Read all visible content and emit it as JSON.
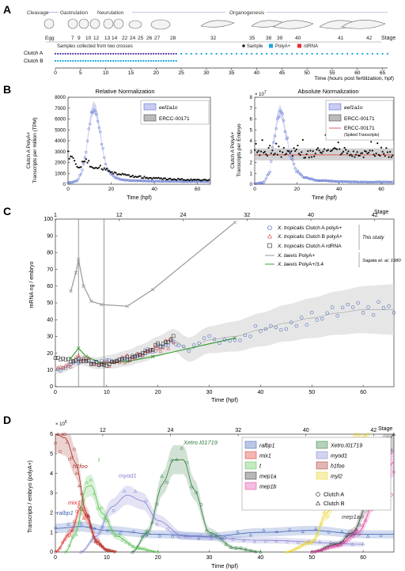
{
  "panel_labels": {
    "a": "A",
    "b": "B",
    "c": "C",
    "d": "D"
  },
  "panelA": {
    "phases": [
      "Cleavage",
      "Gastrulation",
      "Neurulation",
      "Organogenesis"
    ],
    "stage_label": "Stage",
    "egg_label": "Egg",
    "stages": [
      "7",
      "9",
      "10",
      "12",
      "13",
      "14",
      "22",
      "24",
      "25",
      "26",
      "27",
      "28",
      "32",
      "35",
      "38",
      "39",
      "40",
      "41",
      "42"
    ],
    "legend_note": "Samples collected from two crosses",
    "legend": [
      {
        "label": "Sample",
        "color": "#222222"
      },
      {
        "label": "PolyA+",
        "color": "#1aa7df"
      },
      {
        "label": "rdRNA",
        "color": "#e0312e"
      }
    ],
    "clutches": [
      "Clutch A",
      "Clutch B"
    ],
    "xticks": [
      "0",
      "5",
      "10",
      "15",
      "20",
      "25",
      "30",
      "35",
      "40",
      "45",
      "50",
      "55",
      "60",
      "65"
    ],
    "xlabel": "Time (hours post fertilization, hpf)"
  },
  "panelB": {
    "left": {
      "title": "Relative Normalization",
      "ylabel_1": "Clutch A PolyA+",
      "ylabel_2": "Transcripts per million (TPM)",
      "xlabel": "Time (hpf)",
      "yticks": [
        "0",
        "1000",
        "2000",
        "3000",
        "4000",
        "5000",
        "6000",
        "7000",
        "8000"
      ],
      "xticks": [
        "0",
        "20",
        "40",
        "60"
      ],
      "legend": [
        "eef1a1o",
        "ERCC-00171"
      ]
    },
    "right": {
      "title": "Absolute Normalization",
      "exponent": "× 10",
      "exponent_power": "7",
      "ylabel_1": "Clutch A PolyA+",
      "ylabel_2": "Transcripts per Embryo",
      "xlabel": "Time (hpf)",
      "yticks": [
        "0",
        "1",
        "2",
        "3",
        "4",
        "5",
        "6",
        "7",
        "8"
      ],
      "xticks": [
        "0",
        "20",
        "40",
        "60"
      ],
      "legend": [
        "eef1a1o",
        "ERCC-00171",
        "ERCC-00171",
        "(Spiked Transcripts)"
      ]
    }
  },
  "panelC": {
    "ylabel": "mRNA ng / embryo",
    "xlabel": "Time (hpf)",
    "stage_label": "Stage",
    "top_ticks": [
      "1",
      "12",
      "24",
      "32",
      "40",
      "42"
    ],
    "yticks": [
      "0",
      "10",
      "20",
      "30",
      "40",
      "50",
      "60",
      "70",
      "80",
      "90",
      "100"
    ],
    "xticks": [
      "0",
      "10",
      "20",
      "30",
      "40",
      "50",
      "60"
    ],
    "legend": [
      {
        "species": "X. tropicalis",
        "rest": "Clutch A polyA+"
      },
      {
        "species": "X. tropicalis",
        "rest": "Clutch B polyA+"
      },
      {
        "species": "X. tropicalis",
        "rest": "Clutch A rdRNA"
      },
      {
        "species": "X. laevis",
        "rest": "PolyA+"
      },
      {
        "species": "X. laevis",
        "rest": "PolyA+/3.4"
      }
    ],
    "this_study": "This study",
    "sagata": "Sagata et. al, 1980"
  },
  "panelD": {
    "ylabel": "Transcripts / embryo (polyA+)",
    "xlabel": "Time (hpf)",
    "exponent": "× 10",
    "exponent_power": "6",
    "stage_label": "Stage",
    "top_ticks": [
      "12",
      "24",
      "32",
      "40",
      "42"
    ],
    "yticks": [
      "0",
      "1",
      "2",
      "3",
      "4",
      "5",
      "6"
    ],
    "xticks": [
      "0",
      "10",
      "20",
      "30",
      "40",
      "50",
      "60"
    ],
    "curve_labels": [
      "h1foo",
      "mix1",
      "t",
      "myod1",
      "Xetro.I01719",
      "ralbp1",
      "myl2",
      "mep1a",
      "mep1b"
    ],
    "legend": [
      "ralbp1",
      "Xetro.I01719",
      "mix1",
      "myod1",
      "t",
      "h1foo",
      "mep1a",
      "myl2",
      "mep1b"
    ],
    "legend_markers": [
      "Clutch A",
      "Clutch B"
    ]
  },
  "colors": {
    "eef1a1o": "#4a63c8",
    "polyA": "#1aa7df",
    "rdRNA": "#e0312e",
    "laevis": "#999999",
    "laevis34": "#3aa035",
    "ralbp1": "#3860b4",
    "xetro": "#2e7a3c",
    "mix1": "#d9302a",
    "myod1": "#8080d0",
    "t": "#58c050",
    "h1foo": "#a83028",
    "mep1a": "#333333",
    "myl2": "#e8d020",
    "mep1b": "#e040a0"
  },
  "chart_data": [
    {
      "type": "scatter",
      "title": "Relative Normalization",
      "xlabel": "Time (hpf)",
      "ylabel": "Clutch A PolyA+ Transcripts per million (TPM)",
      "xlim": [
        0,
        66
      ],
      "ylim": [
        0,
        8000
      ],
      "series": [
        {
          "name": "eef1a1o",
          "points": [
            [
              0,
              150
            ],
            [
              2,
              180
            ],
            [
              4,
              300
            ],
            [
              6,
              900
            ],
            [
              8,
              2500
            ],
            [
              9,
              4000
            ],
            [
              10,
              5500
            ],
            [
              11,
              6600
            ],
            [
              12,
              7100
            ],
            [
              13,
              6700
            ],
            [
              14,
              5800
            ],
            [
              15,
              4600
            ],
            [
              16,
              3300
            ],
            [
              17,
              2300
            ],
            [
              18,
              1500
            ],
            [
              20,
              900
            ],
            [
              22,
              600
            ],
            [
              25,
              400
            ],
            [
              30,
              330
            ],
            [
              40,
              280
            ],
            [
              50,
              260
            ],
            [
              60,
              250
            ],
            [
              65,
              240
            ]
          ]
        },
        {
          "name": "ERCC-00171",
          "points": [
            [
              0,
              3000
            ],
            [
              1,
              2600
            ],
            [
              2,
              2400
            ],
            [
              3,
              2000
            ],
            [
              4,
              1800
            ],
            [
              6,
              1750
            ],
            [
              8,
              2100
            ],
            [
              10,
              1900
            ],
            [
              12,
              1600
            ],
            [
              14,
              1500
            ],
            [
              16,
              1500
            ],
            [
              18,
              1300
            ],
            [
              20,
              1100
            ],
            [
              24,
              900
            ],
            [
              30,
              700
            ],
            [
              40,
              550
            ],
            [
              50,
              450
            ],
            [
              60,
              400
            ],
            [
              65,
              380
            ]
          ]
        }
      ]
    },
    {
      "type": "scatter",
      "title": "Absolute Normalization",
      "xlabel": "Time (hpf)",
      "ylabel": "Clutch A PolyA+ Transcripts per Embryo",
      "xlim": [
        0,
        66
      ],
      "ylim": [
        0,
        80000000
      ],
      "series": [
        {
          "name": "eef1a1o",
          "points": [
            [
              0,
              500000
            ],
            [
              4,
              1500000
            ],
            [
              7,
              10000000
            ],
            [
              9,
              40000000
            ],
            [
              11,
              62000000
            ],
            [
              12,
              68000000
            ],
            [
              13,
              63000000
            ],
            [
              15,
              45000000
            ],
            [
              17,
              25000000
            ],
            [
              20,
              12000000
            ],
            [
              24,
              6000000
            ],
            [
              30,
              3500000
            ],
            [
              40,
              2500000
            ],
            [
              50,
              2000000
            ],
            [
              60,
              2000000
            ]
          ]
        },
        {
          "name": "ERCC-00171",
          "points": [
            [
              0,
              28000000
            ],
            [
              5,
              29000000
            ],
            [
              10,
              31000000
            ],
            [
              15,
              28000000
            ],
            [
              20,
              30000000
            ],
            [
              25,
              27000000
            ],
            [
              30,
              29000000
            ],
            [
              40,
              31000000
            ],
            [
              50,
              28000000
            ],
            [
              60,
              30000000
            ],
            [
              65,
              29000000
            ]
          ]
        },
        {
          "name": "ERCC-00171 (Spiked Transcripts)",
          "points": [
            [
              0,
              27000000
            ],
            [
              66,
              27000000
            ]
          ]
        }
      ]
    },
    {
      "type": "scatter",
      "xlabel": "Time (hpf)",
      "ylabel": "mRNA ng / embryo",
      "xlim": [
        0,
        66
      ],
      "ylim": [
        0,
        100
      ],
      "series": [
        {
          "name": "X. tropicalis Clutch A polyA+",
          "points": [
            [
              1,
              10
            ],
            [
              3,
              13
            ],
            [
              5,
              16
            ],
            [
              8,
              14
            ],
            [
              11,
              15
            ],
            [
              14,
              17
            ],
            [
              17,
              20
            ],
            [
              20,
              24
            ],
            [
              23,
              28
            ],
            [
              26,
              22
            ],
            [
              30,
              28
            ],
            [
              35,
              30
            ],
            [
              40,
              34
            ],
            [
              45,
              38
            ],
            [
              50,
              41
            ],
            [
              55,
              44
            ],
            [
              60,
              46
            ],
            [
              64,
              46
            ]
          ]
        },
        {
          "name": "X. tropicalis Clutch B polyA+",
          "points": [
            [
              1,
              11
            ],
            [
              3,
              13
            ],
            [
              5,
              18
            ],
            [
              8,
              13
            ],
            [
              11,
              14
            ],
            [
              14,
              17
            ],
            [
              17,
              21
            ],
            [
              20,
              23
            ],
            [
              23,
              26
            ]
          ]
        },
        {
          "name": "X. tropicalis Clutch A rdRNA",
          "points": [
            [
              0,
              17
            ],
            [
              2,
              16
            ],
            [
              4,
              16
            ],
            [
              6,
              15
            ],
            [
              8,
              14
            ],
            [
              10,
              13
            ],
            [
              12,
              15
            ],
            [
              14,
              17
            ],
            [
              16,
              19
            ],
            [
              18,
              21
            ],
            [
              20,
              25
            ],
            [
              22,
              28
            ],
            [
              23,
              29
            ]
          ]
        },
        {
          "name": "X. laevis PolyA+",
          "points": [
            [
              3,
              57
            ],
            [
              4,
              68
            ],
            [
              4.5,
              76
            ],
            [
              5.5,
              60
            ],
            [
              7,
              51
            ],
            [
              9,
              49
            ],
            [
              14,
              48
            ],
            [
              19,
              58
            ],
            [
              35,
              98
            ]
          ]
        },
        {
          "name": "X. laevis PolyA+/3.4",
          "points": [
            [
              3,
              17
            ],
            [
              4.5,
              23
            ],
            [
              6,
              18
            ],
            [
              9,
              14
            ],
            [
              14,
              15
            ],
            [
              19,
              18
            ],
            [
              35,
              29
            ]
          ]
        }
      ]
    },
    {
      "type": "line",
      "xlabel": "Time (hpf)",
      "ylabel": "Transcripts / embryo (polyA+)",
      "xlim": [
        0,
        66
      ],
      "ylim": [
        0,
        6000000
      ],
      "series": [
        {
          "name": "ralbp1",
          "points": [
            [
              0,
              1200000
            ],
            [
              5,
              1300000
            ],
            [
              10,
              1100000
            ],
            [
              20,
              900000
            ],
            [
              30,
              800000
            ],
            [
              40,
              1000000
            ],
            [
              50,
              1100000
            ],
            [
              60,
              900000
            ],
            [
              66,
              900000
            ]
          ]
        },
        {
          "name": "Xetro.I01719",
          "points": [
            [
              15,
              0
            ],
            [
              18,
              1000000
            ],
            [
              21,
              3500000
            ],
            [
              23,
              4700000
            ],
            [
              25,
              4700000
            ],
            [
              27,
              3200000
            ],
            [
              30,
              1000000
            ],
            [
              35,
              200000
            ],
            [
              40,
              0
            ]
          ]
        },
        {
          "name": "mix1",
          "points": [
            [
              0,
              0
            ],
            [
              3,
              1000000
            ],
            [
              5,
              2300000
            ],
            [
              6,
              1800000
            ],
            [
              8,
              600000
            ],
            [
              10,
              100000
            ],
            [
              12,
              0
            ]
          ]
        },
        {
          "name": "myod1",
          "points": [
            [
              5,
              0
            ],
            [
              8,
              800000
            ],
            [
              11,
              2300000
            ],
            [
              14,
              2900000
            ],
            [
              17,
              2600000
            ],
            [
              20,
              1600000
            ],
            [
              25,
              800000
            ],
            [
              40,
              600000
            ],
            [
              60,
              400000
            ]
          ]
        },
        {
          "name": "t",
          "points": [
            [
              2,
              0
            ],
            [
              4,
              1000000
            ],
            [
              6,
              3300000
            ],
            [
              7,
              3400000
            ],
            [
              9,
              2000000
            ],
            [
              12,
              800000
            ],
            [
              16,
              200000
            ],
            [
              20,
              0
            ]
          ]
        },
        {
          "name": "h1foo",
          "points": [
            [
              0,
              6000000
            ],
            [
              2,
              5800000
            ],
            [
              4,
              4500000
            ],
            [
              6,
              2000000
            ],
            [
              8,
              500000
            ],
            [
              10,
              100000
            ],
            [
              12,
              0
            ]
          ]
        },
        {
          "name": "mep1a",
          "points": [
            [
              50,
              0
            ],
            [
              55,
              400000
            ],
            [
              58,
              1000000
            ],
            [
              61,
              2500000
            ],
            [
              64,
              5200000
            ],
            [
              66,
              6000000
            ]
          ]
        },
        {
          "name": "myl2",
          "points": [
            [
              45,
              0
            ],
            [
              50,
              500000
            ],
            [
              53,
              2000000
            ],
            [
              56,
              4000000
            ],
            [
              59,
              5700000
            ],
            [
              61,
              6000000
            ]
          ]
        },
        {
          "name": "mep1b",
          "points": [
            [
              50,
              0
            ],
            [
              55,
              300000
            ],
            [
              59,
              1000000
            ],
            [
              63,
              3000000
            ],
            [
              66,
              4600000
            ]
          ]
        }
      ]
    }
  ]
}
